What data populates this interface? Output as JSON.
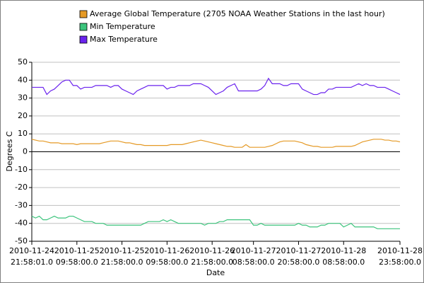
{
  "chart_data": {
    "type": "line",
    "xlabel": "Date",
    "ylabel": "Degrees C",
    "categories": [
      "2010-11-24 21:58:01.0",
      null,
      null,
      null,
      null,
      null,
      null,
      null,
      null,
      null,
      null,
      null,
      "2010-11-25 09:58:00.0",
      null,
      null,
      null,
      null,
      null,
      null,
      null,
      null,
      null,
      null,
      null,
      "2010-11-25 21:58:00.0",
      null,
      null,
      null,
      null,
      null,
      null,
      null,
      null,
      null,
      null,
      null,
      "2010-11-26 09:58:00.0",
      null,
      null,
      null,
      null,
      null,
      null,
      null,
      null,
      null,
      null,
      null,
      "2010-11-26 21:58:00.0",
      null,
      null,
      null,
      null,
      null,
      null,
      null,
      null,
      null,
      null,
      "2010-11-27 08:58:00.0",
      null,
      null,
      null,
      null,
      null,
      null,
      null,
      null,
      null,
      null,
      null,
      "2010-11-27 20:58:00.0",
      null,
      null,
      null,
      null,
      null,
      null,
      null,
      null,
      null,
      null,
      null,
      "2010-11-28 08:58:00.0",
      null,
      null,
      null,
      null,
      null,
      null,
      null,
      null,
      null,
      null,
      null,
      null,
      null,
      null,
      "2010-11-28 23:58:00.0"
    ],
    "series": [
      {
        "name": "Average Global Temperature (2705 NOAA Weather Stations in the last hour)",
        "color": "#e59a26",
        "values": [
          7,
          6.5,
          6,
          6,
          5.5,
          5,
          5,
          5,
          4.5,
          4.5,
          4.5,
          4.5,
          4,
          4.5,
          4.5,
          4.5,
          4.5,
          4.5,
          4.5,
          5,
          5.5,
          6,
          6,
          6,
          5.5,
          5,
          5,
          4.5,
          4,
          4,
          3.5,
          3.5,
          3.5,
          3.5,
          3.5,
          3.5,
          3.5,
          4,
          4,
          4,
          4,
          4.5,
          5,
          5.5,
          6,
          6.5,
          6,
          5.5,
          5,
          4.5,
          4,
          3.5,
          3,
          3,
          2.5,
          2.5,
          2.5,
          4,
          2.5,
          2.5,
          2.5,
          2.5,
          2.5,
          3,
          3.5,
          4.5,
          5.5,
          6,
          6,
          6,
          6,
          5.5,
          5,
          4,
          3.5,
          3,
          3,
          2.5,
          2.5,
          2.5,
          2.5,
          3,
          3,
          3,
          3,
          3,
          3.5,
          4.5,
          5.5,
          6,
          6.5,
          7,
          7,
          7,
          6.5,
          6.5,
          6,
          6,
          5.5
        ]
      },
      {
        "name": "Min Temperature",
        "color": "#3cc47c",
        "values": [
          -36,
          -37,
          -36,
          -38,
          -38,
          -37,
          -36,
          -37,
          -37,
          -37,
          -36,
          -36,
          -37,
          -38,
          -39,
          -39,
          -39,
          -40,
          -40,
          -40,
          -41,
          -41,
          -41,
          -41,
          -41,
          -41,
          -41,
          -41,
          -41,
          -41,
          -40,
          -39,
          -39,
          -39,
          -39,
          -38,
          -39,
          -38,
          -39,
          -40,
          -40,
          -40,
          -40,
          -40,
          -40,
          -40,
          -41,
          -40,
          -40,
          -40,
          -39,
          -39,
          -38,
          -38,
          -38,
          -38,
          -38,
          -38,
          -38,
          -41,
          -41,
          -40,
          -41,
          -41,
          -41,
          -41,
          -41,
          -41,
          -41,
          -41,
          -41,
          -40,
          -41,
          -41,
          -42,
          -42,
          -42,
          -41,
          -41,
          -40,
          -40,
          -40,
          -40,
          -42,
          -41,
          -40,
          -42,
          -42,
          -42,
          -42,
          -42,
          -42,
          -43,
          -43,
          -43,
          -43,
          -43,
          -43,
          -43
        ]
      },
      {
        "name": "Max Temperature",
        "color": "#6a22ee",
        "values": [
          36,
          36,
          36,
          36,
          32,
          34,
          35,
          37,
          39,
          40,
          40,
          37,
          37,
          35,
          36,
          36,
          36,
          37,
          37,
          37,
          37,
          36,
          37,
          37,
          35,
          34,
          33,
          32,
          34,
          35,
          36,
          37,
          37,
          37,
          37,
          37,
          35,
          36,
          36,
          37,
          37,
          37,
          37,
          38,
          38,
          38,
          37,
          36,
          34,
          32,
          33,
          34,
          36,
          37,
          38,
          34,
          34,
          34,
          34,
          34,
          34,
          35,
          37,
          41,
          38,
          38,
          38,
          37,
          37,
          38,
          38,
          38,
          35,
          34,
          33,
          32,
          32,
          33,
          33,
          35,
          35,
          36,
          36,
          36,
          36,
          36,
          37,
          38,
          37,
          38,
          37,
          37,
          36,
          36,
          36,
          35,
          34,
          33,
          32
        ]
      }
    ],
    "ylim": [
      -50,
      50
    ],
    "yticks": [
      -50,
      -40,
      -30,
      -20,
      -10,
      0,
      10,
      20,
      30,
      40,
      50
    ],
    "grid": true
  }
}
